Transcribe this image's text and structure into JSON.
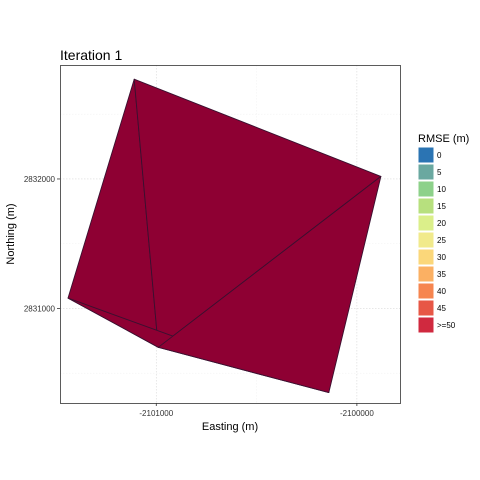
{
  "chart_data": {
    "type": "polygon-map",
    "title": "Iteration 1",
    "xlabel": "Easting (m)",
    "ylabel": "Northing (m)",
    "xlim": [
      -2101480,
      -2099785
    ],
    "ylim": [
      2830270,
      2832880
    ],
    "x_ticks": [
      {
        "value": -2101000,
        "label": "-2101000"
      },
      {
        "value": -2100000,
        "label": "-2100000"
      }
    ],
    "y_ticks": [
      {
        "value": 2831000,
        "label": "2831000"
      },
      {
        "value": 2832000,
        "label": "2832000"
      }
    ],
    "grid": true,
    "fill_color": "#8e0033",
    "edge_color": "#3a1030",
    "triangles": [
      {
        "points": [
          [
            -2101440,
            2831080
          ],
          [
            -2101110,
            2832770
          ],
          [
            -2100990,
            2830700
          ]
        ]
      },
      {
        "points": [
          [
            -2101110,
            2832770
          ],
          [
            -2099880,
            2832020
          ],
          [
            -2100990,
            2830700
          ]
        ]
      },
      {
        "points": [
          [
            -2101440,
            2831080
          ],
          [
            -2100990,
            2830700
          ],
          [
            -2100140,
            2830350
          ]
        ]
      },
      {
        "points": [
          [
            -2100990,
            2830700
          ],
          [
            -2099880,
            2832020
          ],
          [
            -2100140,
            2830350
          ]
        ]
      }
    ],
    "legend": {
      "title": "RMSE (m)",
      "position": "right",
      "entries": [
        {
          "label": "0",
          "color": "#2b74b3"
        },
        {
          "label": "5",
          "color": "#6aa8a0"
        },
        {
          "label": "10",
          "color": "#8dd18a"
        },
        {
          "label": "15",
          "color": "#b7e07e"
        },
        {
          "label": "20",
          "color": "#dbef8a"
        },
        {
          "label": "25",
          "color": "#f1ea8c"
        },
        {
          "label": "30",
          "color": "#fbd77a"
        },
        {
          "label": "35",
          "color": "#fbb063"
        },
        {
          "label": "40",
          "color": "#f6854f"
        },
        {
          "label": "45",
          "color": "#e75746"
        },
        {
          "label": ">=50",
          "color": "#d0293f"
        }
      ]
    }
  }
}
